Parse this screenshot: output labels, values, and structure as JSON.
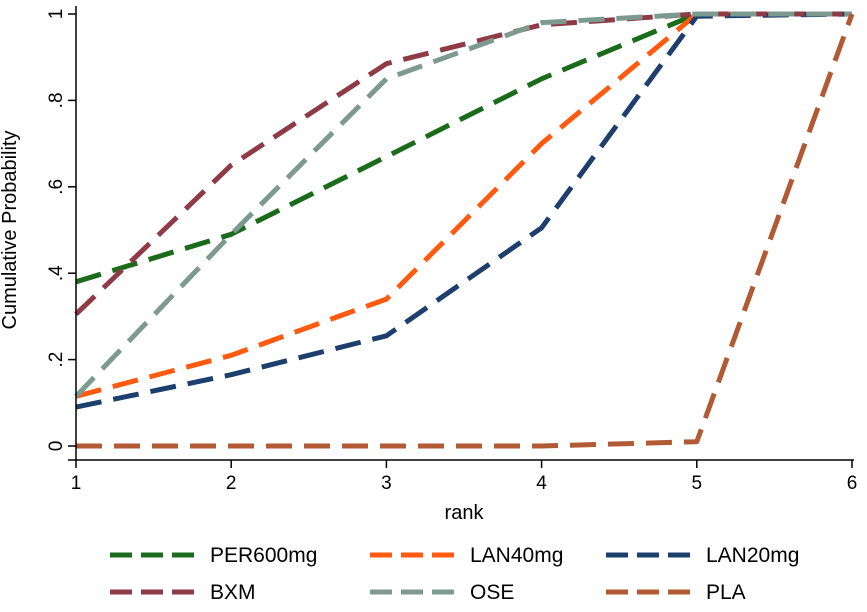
{
  "chart_data": {
    "type": "line",
    "x": [
      1,
      2,
      3,
      4,
      5,
      6
    ],
    "series": [
      {
        "name": "PER600mg",
        "color": "#1a6b1a",
        "values": [
          0.38,
          0.49,
          0.67,
          0.85,
          1.0,
          1.0
        ]
      },
      {
        "name": "LAN40mg",
        "color": "#ff5a0f",
        "values": [
          0.115,
          0.21,
          0.34,
          0.7,
          1.0,
          1.0
        ]
      },
      {
        "name": "LAN20mg",
        "color": "#1c3f6e",
        "values": [
          0.09,
          0.165,
          0.255,
          0.505,
          0.995,
          1.0
        ]
      },
      {
        "name": "BXM",
        "color": "#8e3b46",
        "values": [
          0.305,
          0.65,
          0.885,
          0.975,
          1.0,
          1.0
        ]
      },
      {
        "name": "OSE",
        "color": "#7d9a91",
        "values": [
          0.115,
          0.49,
          0.85,
          0.98,
          1.0,
          1.0
        ]
      },
      {
        "name": "PLA",
        "color": "#b25a33",
        "values": [
          0.0,
          0.0,
          0.0,
          0.0,
          0.01,
          1.0
        ]
      }
    ],
    "xlabel": "rank",
    "ylabel": "Cumulative Probability",
    "xlim": [
      1,
      6
    ],
    "ylim": [
      0,
      1
    ],
    "xticks": [
      "1",
      "2",
      "3",
      "4",
      "5",
      "6"
    ],
    "yticks": [
      {
        "value": 0,
        "label": "0"
      },
      {
        "value": 0.2,
        "label": ".2"
      },
      {
        "value": 0.4,
        "label": ".4"
      },
      {
        "value": 0.6,
        "label": ".6"
      },
      {
        "value": 0.8,
        "label": ".8"
      },
      {
        "value": 1,
        "label": "1"
      }
    ],
    "grid": false,
    "legend_position": "bottom",
    "line_style": "dashed"
  }
}
